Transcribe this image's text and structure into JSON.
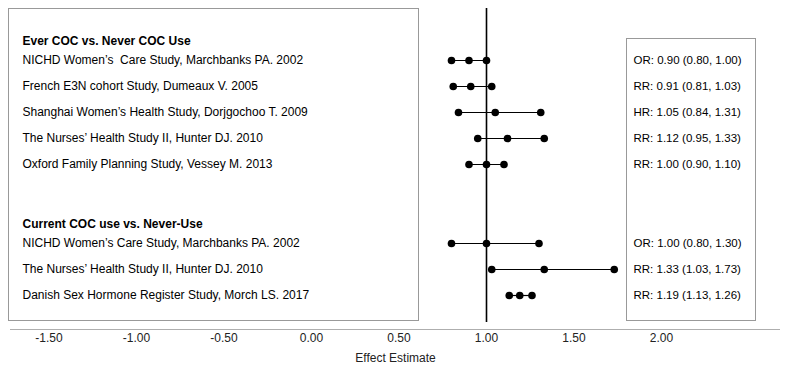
{
  "chart_data": {
    "type": "forest",
    "xlabel": "Effect Estimate",
    "xlim": [
      -1.72,
      2.68
    ],
    "xticks": [
      {
        "value": -1.5,
        "label": "-1.50"
      },
      {
        "value": -1,
        "label": "-1.00"
      },
      {
        "value": -0.5,
        "label": "-0.50"
      },
      {
        "value": 0,
        "label": "0.00"
      },
      {
        "value": 0.5,
        "label": "0.50"
      },
      {
        "value": 1,
        "label": "1.00"
      },
      {
        "value": 1.5,
        "label": "1.50"
      },
      {
        "value": 2,
        "label": "2.00"
      }
    ],
    "reference_line": 1,
    "groups": [
      {
        "title": "Ever COC vs. Never COC Use",
        "studies": [
          {
            "name": "NICHD Women’s  Care Study, Marchbanks PA. 2002",
            "value": 0.9,
            "lower": 0.8,
            "upper": 1.0,
            "value_label": "OR: 0.90 (0.80, 1.00)"
          },
          {
            "name": "French E3N cohort Study, Dumeaux V. 2005",
            "value": 0.91,
            "lower": 0.81,
            "upper": 1.03,
            "value_label": "RR: 0.91 (0.81, 1.03)"
          },
          {
            "name": "Shanghai Women’s Health Study, Dorjgochoo T. 2009",
            "value": 1.05,
            "lower": 0.84,
            "upper": 1.31,
            "value_label": "HR: 1.05 (0.84, 1.31)"
          },
          {
            "name": "The Nurses’ Health Study II, Hunter DJ. 2010",
            "value": 1.12,
            "lower": 0.95,
            "upper": 1.33,
            "value_label": "RR: 1.12 (0.95, 1.33)"
          },
          {
            "name": "Oxford Family Planning Study, Vessey M. 2013",
            "value": 1.0,
            "lower": 0.9,
            "upper": 1.1,
            "value_label": "RR: 1.00 (0.90, 1.10)"
          }
        ]
      },
      {
        "title": "Current COC use vs. Never-Use",
        "studies": [
          {
            "name": "NICHD Women’s Care Study, Marchbanks PA. 2002",
            "value": 1.0,
            "lower": 0.8,
            "upper": 1.3,
            "value_label": "OR: 1.00 (0.80, 1.30)"
          },
          {
            "name": "The Nurses’ Health Study II, Hunter DJ. 2010",
            "value": 1.33,
            "lower": 1.03,
            "upper": 1.73,
            "value_label": "RR: 1.33 (1.03, 1.73)"
          },
          {
            "name": "Danish Sex Hormone Register Study, Morch LS. 2017",
            "value": 1.19,
            "lower": 1.13,
            "upper": 1.26,
            "value_label": "RR: 1.19 (1.13, 1.26)"
          }
        ]
      }
    ]
  }
}
